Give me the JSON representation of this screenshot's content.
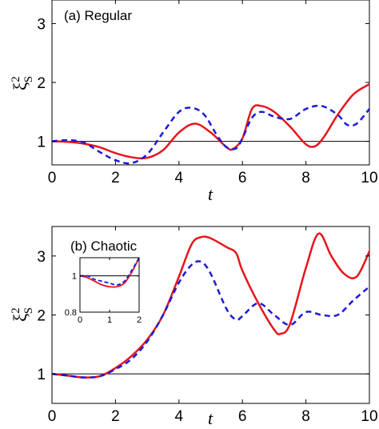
{
  "chart_data": [
    {
      "type": "line",
      "panel_label": "(a) Regular",
      "xlabel": "t",
      "ylabel": "ξ",
      "ylabel_sup": "2",
      "ylabel_sub": "S",
      "xlim": [
        0,
        10
      ],
      "ylim": [
        0.6,
        3.4
      ],
      "xticks": [
        0,
        2,
        4,
        6,
        8,
        10
      ],
      "yticks": [
        1,
        2,
        3
      ],
      "reference_line": 1,
      "series": [
        {
          "style": "solid",
          "color": "#e8141c",
          "x": [
            0,
            0.5,
            1,
            1.5,
            2,
            2.5,
            3,
            3.5,
            4,
            4.5,
            5,
            5.5,
            5.7,
            6,
            6.3,
            6.6,
            7,
            7.5,
            8,
            8.3,
            8.6,
            9,
            9.5,
            10
          ],
          "y": [
            1.0,
            0.99,
            0.96,
            0.9,
            0.8,
            0.73,
            0.72,
            0.85,
            1.15,
            1.3,
            1.15,
            0.9,
            0.87,
            1.05,
            1.55,
            1.6,
            1.5,
            1.25,
            0.95,
            0.92,
            1.1,
            1.45,
            1.8,
            1.97
          ]
        },
        {
          "style": "dashed",
          "color": "#1a1adc",
          "x": [
            0,
            0.5,
            1,
            1.5,
            2,
            2.5,
            3,
            3.5,
            4,
            4.4,
            4.8,
            5.2,
            5.5,
            5.8,
            6,
            6.3,
            6.6,
            7,
            7.5,
            8,
            8.5,
            9,
            9.3,
            9.6,
            10
          ],
          "y": [
            1.0,
            1.02,
            0.98,
            0.82,
            0.68,
            0.63,
            0.78,
            1.15,
            1.5,
            1.57,
            1.45,
            1.1,
            0.9,
            0.88,
            1.05,
            1.4,
            1.5,
            1.42,
            1.38,
            1.55,
            1.6,
            1.45,
            1.28,
            1.3,
            1.55
          ]
        }
      ]
    },
    {
      "type": "line",
      "panel_label": "(b) Chaotic",
      "xlabel": "t",
      "ylabel": "ξ",
      "ylabel_sup": "2",
      "ylabel_sub": "S",
      "xlim": [
        0,
        10
      ],
      "ylim": [
        0.5,
        3.5
      ],
      "xticks": [
        0,
        2,
        4,
        6,
        8,
        10
      ],
      "yticks": [
        1,
        2,
        3
      ],
      "reference_line": 1,
      "series": [
        {
          "style": "solid",
          "color": "#e8141c",
          "x": [
            0,
            0.5,
            1,
            1.5,
            2,
            2.5,
            3,
            3.5,
            4,
            4.4,
            4.7,
            5,
            5.5,
            5.8,
            6,
            6.5,
            7,
            7.2,
            7.5,
            8,
            8.4,
            8.8,
            9.2,
            9.6,
            10
          ],
          "y": [
            1.0,
            0.97,
            0.94,
            0.96,
            1.1,
            1.3,
            1.58,
            2.0,
            2.65,
            3.2,
            3.32,
            3.3,
            3.15,
            3.05,
            2.75,
            2.2,
            1.75,
            1.68,
            1.85,
            2.8,
            3.38,
            3.0,
            2.7,
            2.65,
            3.08
          ]
        },
        {
          "style": "dashed",
          "color": "#1a1adc",
          "x": [
            0,
            0.5,
            1,
            1.5,
            2,
            2.5,
            3,
            3.5,
            4,
            4.4,
            4.7,
            5,
            5.5,
            5.8,
            6,
            6.5,
            7,
            7.5,
            8,
            8.5,
            9,
            9.5,
            10
          ],
          "y": [
            1.0,
            0.97,
            0.94,
            0.96,
            1.08,
            1.25,
            1.55,
            2.0,
            2.55,
            2.85,
            2.9,
            2.7,
            2.1,
            1.92,
            1.98,
            2.2,
            2.0,
            1.83,
            2.05,
            2.0,
            2.0,
            2.25,
            2.48
          ]
        }
      ],
      "inset": {
        "xlim": [
          0,
          2
        ],
        "ylim": [
          0.8,
          1.1
        ],
        "xticks": [
          0,
          1,
          2
        ],
        "yticks": [
          0.8,
          1
        ],
        "reference_line": 1,
        "series": [
          {
            "style": "solid",
            "color": "#e8141c",
            "x": [
              0,
              0.25,
              0.5,
              0.75,
              1.0,
              1.25,
              1.5,
              1.75,
              2.0
            ],
            "y": [
              1.0,
              0.99,
              0.97,
              0.95,
              0.94,
              0.94,
              0.96,
              1.02,
              1.1
            ]
          },
          {
            "style": "dashed",
            "color": "#1a1adc",
            "x": [
              0,
              0.25,
              0.5,
              0.75,
              1.0,
              1.25,
              1.5,
              1.75,
              2.0
            ],
            "y": [
              1.0,
              1.0,
              0.98,
              0.97,
              0.96,
              0.95,
              0.97,
              1.03,
              1.1
            ]
          }
        ]
      }
    }
  ]
}
